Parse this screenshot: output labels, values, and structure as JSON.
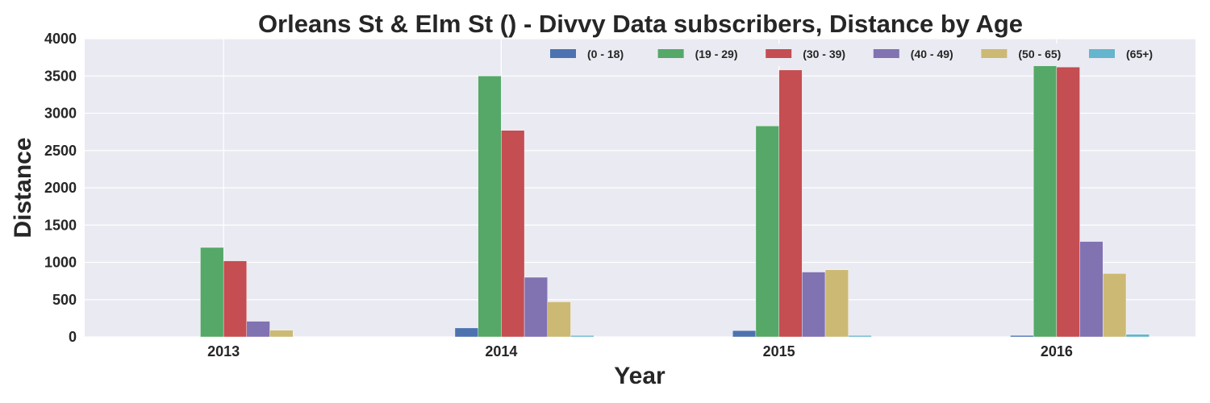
{
  "chart_data": {
    "type": "bar",
    "title": "Orleans St & Elm St () - Divvy Data subscribers, Distance by Age",
    "xlabel": "Year",
    "ylabel": "Distance",
    "categories": [
      "2013",
      "2014",
      "2015",
      "2016"
    ],
    "ylim": [
      0,
      4000
    ],
    "yticks": [
      0,
      500,
      1000,
      1500,
      2000,
      2500,
      3000,
      3500,
      4000
    ],
    "grid": true,
    "legend_position": "top-right",
    "series": [
      {
        "name": "(0 - 18)",
        "color": "#4C72B0",
        "values": [
          0,
          120,
          85,
          20
        ]
      },
      {
        "name": "(19 - 29)",
        "color": "#55A868",
        "values": [
          1200,
          3500,
          2830,
          3650
        ]
      },
      {
        "name": "(30 - 39)",
        "color": "#C44E52",
        "values": [
          1020,
          2770,
          3580,
          3620
        ]
      },
      {
        "name": "(40 - 49)",
        "color": "#8172B2",
        "values": [
          210,
          800,
          870,
          1280
        ]
      },
      {
        "name": "(50 - 65)",
        "color": "#CCB974",
        "values": [
          90,
          470,
          900,
          850
        ]
      },
      {
        "name": "(65+)",
        "color": "#64B5CD",
        "values": [
          0,
          20,
          20,
          35
        ]
      }
    ]
  }
}
